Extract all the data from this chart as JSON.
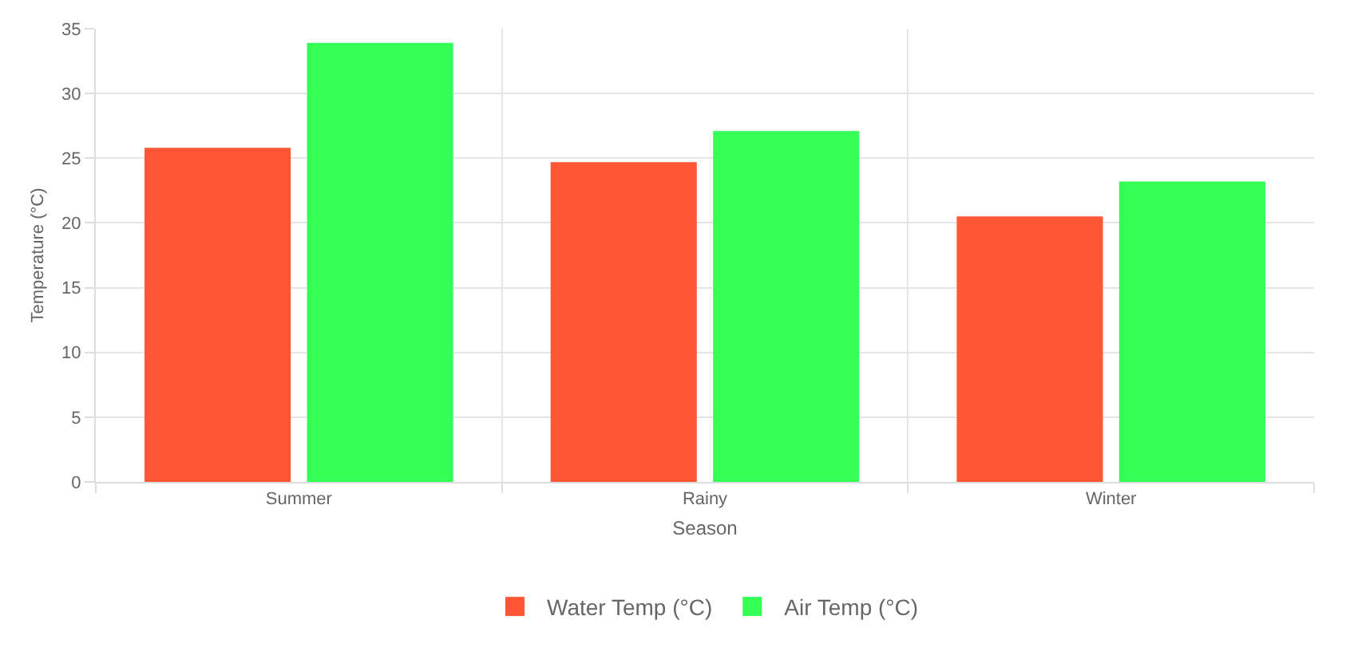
{
  "chart_data": {
    "type": "bar",
    "xlabel": "Season",
    "ylabel": "Temperature (°C)",
    "categories": [
      "Summer",
      "Rainy",
      "Winter"
    ],
    "series": [
      {
        "name": "Water Temp (°C)",
        "color": "#ff5733",
        "values": [
          25.8,
          24.7,
          20.5
        ]
      },
      {
        "name": "Air Temp (°C)",
        "color": "#33ff57",
        "values": [
          33.9,
          27.1,
          23.2
        ]
      }
    ],
    "ylim": [
      0,
      35
    ],
    "yticks": [
      0,
      5,
      10,
      15,
      20,
      25,
      30,
      35
    ],
    "grid": true,
    "legend": "bottom"
  }
}
